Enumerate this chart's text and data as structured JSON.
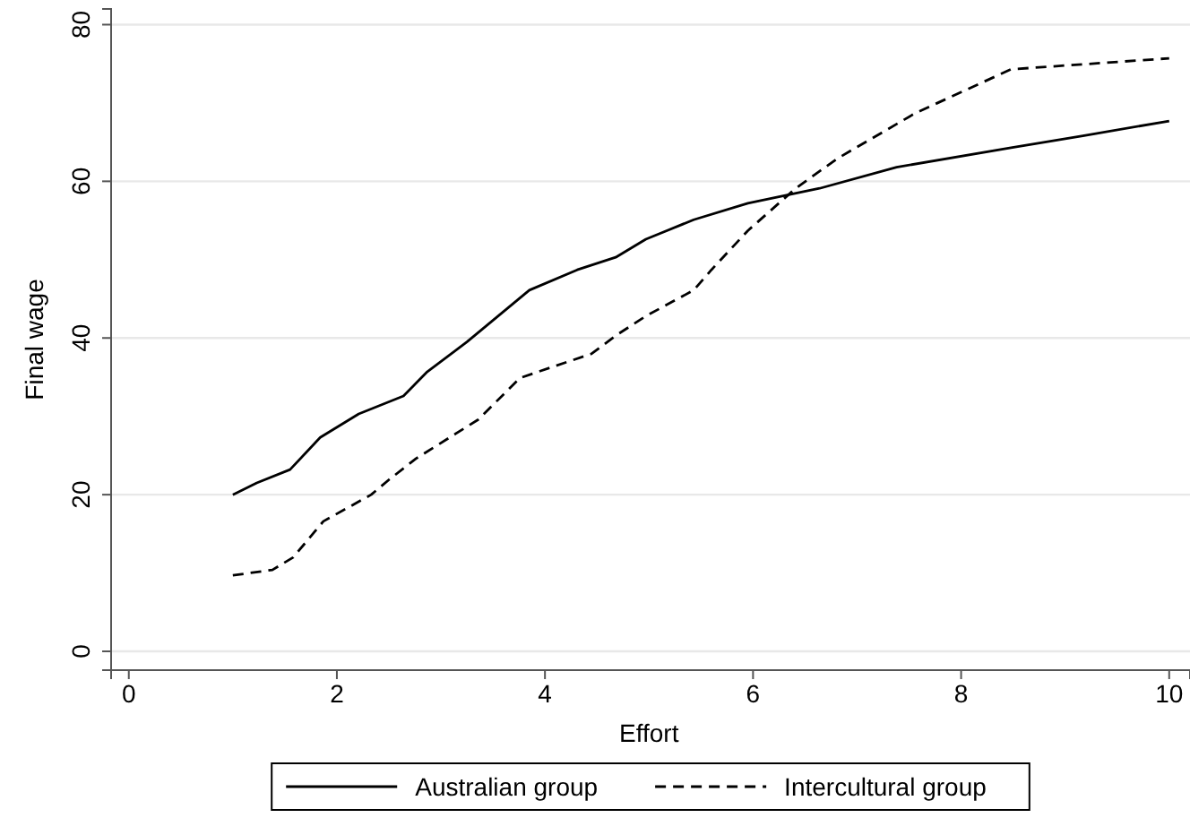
{
  "chart_data": {
    "type": "line",
    "xlabel": "Effort",
    "ylabel": "Final wage",
    "xlim": [
      -0.17,
      10.2
    ],
    "ylim": [
      -2.4,
      82
    ],
    "xticks": [
      0,
      2,
      4,
      6,
      8,
      10
    ],
    "yticks": [
      0,
      20,
      40,
      60,
      80
    ],
    "grid": "y",
    "legend": "bottom",
    "series": [
      {
        "name": "Australian group",
        "color": "#000000",
        "line_style": "solid",
        "x": [
          1.0,
          1.23,
          1.55,
          1.84,
          2.21,
          2.64,
          2.87,
          3.25,
          3.85,
          4.31,
          4.68,
          4.97,
          5.43,
          5.95,
          6.64,
          7.38,
          8.48,
          9.17,
          10.0
        ],
        "values": [
          20.0,
          21.5,
          23.2,
          27.3,
          30.3,
          32.6,
          35.7,
          39.5,
          46.1,
          48.7,
          50.3,
          52.6,
          55.1,
          57.2,
          59.1,
          61.8,
          64.3,
          65.8,
          67.7
        ]
      },
      {
        "name": "Intercultural group",
        "color": "#000000",
        "line_style": "dashed",
        "x": [
          1.0,
          1.38,
          1.58,
          1.87,
          2.33,
          2.5,
          2.76,
          3.36,
          3.76,
          4.45,
          4.68,
          4.97,
          5.43,
          5.6,
          5.95,
          6.41,
          6.81,
          7.56,
          8.48,
          10.0
        ],
        "values": [
          9.7,
          10.4,
          12.0,
          16.6,
          20.0,
          21.9,
          24.6,
          29.6,
          34.9,
          38.0,
          40.3,
          42.8,
          46.1,
          48.7,
          53.7,
          59.1,
          62.9,
          68.7,
          74.3,
          75.7
        ]
      }
    ]
  }
}
